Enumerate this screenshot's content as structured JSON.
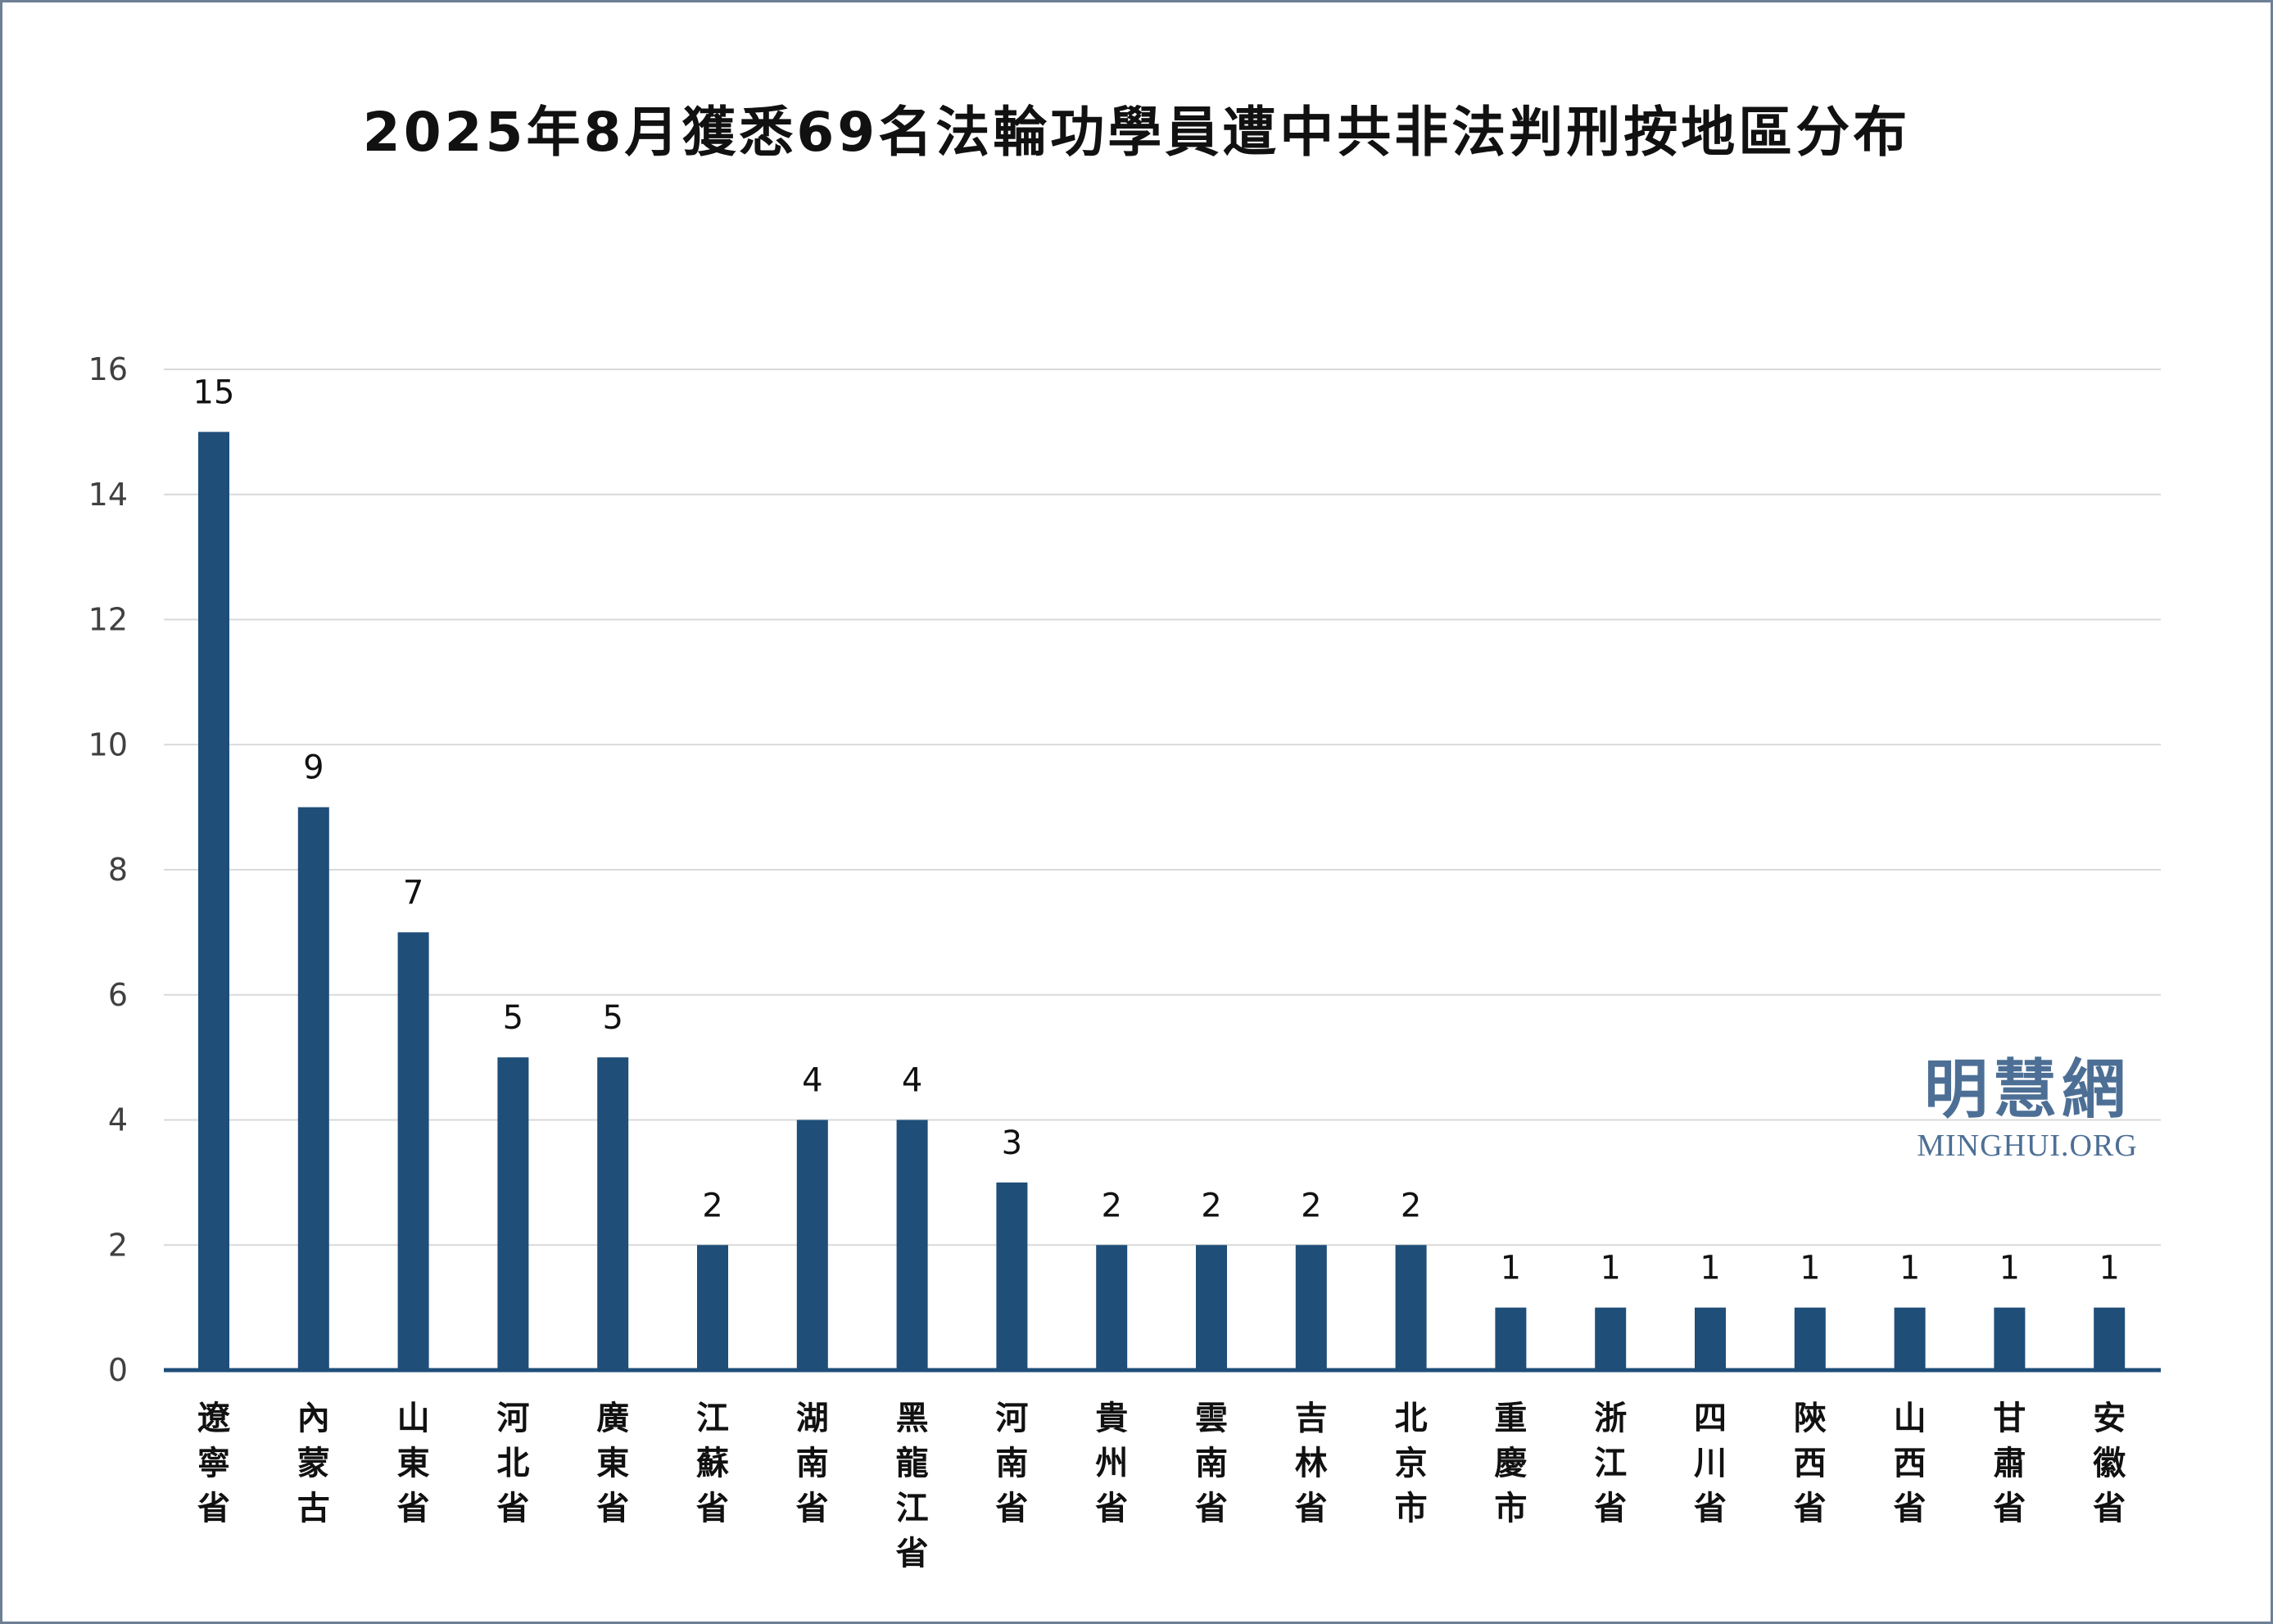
{
  "chart_data": {
    "type": "bar",
    "title": "2025年8月獲悉69名法輪功學員遭中共非法判刑按地區分布",
    "categories": [
      "遼寧省",
      "內蒙古",
      "山東省",
      "河北省",
      "廣東省",
      "江蘇省",
      "湖南省",
      "黑龍江省",
      "河南省",
      "貴州省",
      "雲南省",
      "吉林省",
      "北京市",
      "重慶市",
      "浙江省",
      "四川省",
      "陝西省",
      "山西省",
      "甘肅省",
      "安徽省"
    ],
    "values": [
      15,
      9,
      7,
      5,
      5,
      2,
      4,
      4,
      3,
      2,
      2,
      2,
      2,
      1,
      1,
      1,
      1,
      1,
      1,
      1
    ],
    "yticks": [
      0,
      2,
      4,
      6,
      8,
      10,
      12,
      14,
      16
    ],
    "ylim": [
      0,
      16
    ],
    "xlabel": "",
    "ylabel": "",
    "grid": true,
    "legend": "none",
    "bar_color": "#1f4e79",
    "grid_color": "#d9d9d9",
    "axis_color": "#1f4e79"
  },
  "watermark": {
    "chinese": "明慧網",
    "english": "MINGHUI.ORG"
  }
}
